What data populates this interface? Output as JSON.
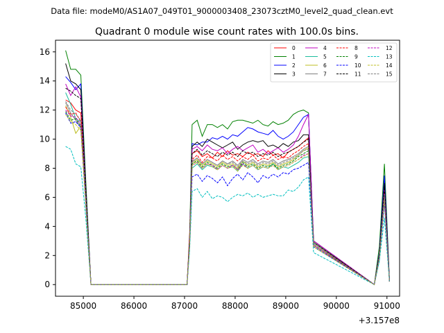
{
  "figure": {
    "suptitle": "Data file: modeM0/AS1A07_049T01_9000003408_23073cztM0_level2_quad_clean.evt"
  },
  "chart_data": {
    "type": "line",
    "title": "Quadrant 0 module wise count rates with 100.0s bins.",
    "xlabel": "",
    "ylabel": "",
    "x_offset_label": "+3.157e8",
    "xlim": [
      84450,
      91250
    ],
    "ylim": [
      -0.8,
      16.8
    ],
    "x_ticks": [
      85000,
      86000,
      87000,
      88000,
      89000,
      90000,
      91000
    ],
    "x_tick_labels": [
      "85000",
      "86000",
      "87000",
      "88000",
      "89000",
      "90000",
      "91000"
    ],
    "y_ticks": [
      0,
      2,
      4,
      6,
      8,
      10,
      12,
      14,
      16
    ],
    "y_tick_labels": [
      "0",
      "2",
      "4",
      "6",
      "8",
      "10",
      "12",
      "14",
      "16"
    ],
    "grid": false,
    "legend": {
      "placement": "top-right",
      "columns": 4
    },
    "segments": [
      {
        "start": 84650,
        "end": 85150
      },
      {
        "start": 85150,
        "end": 87050
      },
      {
        "start": 87050,
        "end": 89550
      },
      {
        "start": 89550,
        "end": 90750
      },
      {
        "start": 90750,
        "end": 90950
      }
    ],
    "series": [
      {
        "name": "0",
        "color": "#ff0000",
        "dash": "solid",
        "values": [
          12.7,
          12.5,
          12.0,
          11.8,
          6.0,
          0.0,
          3.5,
          9.0,
          9.2,
          8.8,
          9.0,
          8.7,
          9.1,
          8.8,
          9.2,
          8.9,
          9.0,
          8.8,
          9.1,
          8.9,
          9.0,
          8.8,
          9.2,
          8.9,
          9.0,
          8.7,
          9.1,
          9.3,
          9.5,
          9.8,
          10.1,
          3.0,
          0.0,
          2.0,
          6.5,
          0.2
        ]
      },
      {
        "name": "1",
        "color": "#008000",
        "dash": "solid",
        "values": [
          16.1,
          14.8,
          14.8,
          14.4,
          7.0,
          0.0,
          3.2,
          11.0,
          11.3,
          10.2,
          11.0,
          11.0,
          10.8,
          11.0,
          10.7,
          11.2,
          11.3,
          11.3,
          11.2,
          11.1,
          11.3,
          11.0,
          10.9,
          11.2,
          11.0,
          11.1,
          11.3,
          11.7,
          11.9,
          12.0,
          11.8,
          2.9,
          0.0,
          2.6,
          8.3,
          0.3
        ]
      },
      {
        "name": "2",
        "color": "#0000ff",
        "dash": "solid",
        "values": [
          14.3,
          13.9,
          13.4,
          13.8,
          6.5,
          0.0,
          3.0,
          9.7,
          9.6,
          9.8,
          9.8,
          10.1,
          10.0,
          10.2,
          10.0,
          10.3,
          10.2,
          10.5,
          10.8,
          10.7,
          10.5,
          10.4,
          10.3,
          10.6,
          10.2,
          10.0,
          10.2,
          10.5,
          11.0,
          11.5,
          11.7,
          3.0,
          0.0,
          2.2,
          7.5,
          0.3
        ]
      },
      {
        "name": "3",
        "color": "#000000",
        "dash": "solid",
        "values": [
          15.2,
          14.0,
          13.8,
          13.4,
          6.5,
          0.0,
          3.1,
          9.5,
          9.8,
          9.5,
          10.0,
          9.8,
          9.6,
          9.4,
          9.6,
          9.8,
          9.3,
          9.6,
          9.8,
          9.9,
          9.8,
          9.9,
          9.5,
          9.6,
          9.4,
          9.7,
          9.5,
          9.8,
          9.9,
          10.3,
          10.3,
          3.0,
          0.0,
          2.1,
          7.0,
          0.3
        ]
      },
      {
        "name": "4",
        "color": "#bf00bf",
        "dash": "solid",
        "values": [
          13.8,
          13.0,
          13.6,
          12.9,
          6.3,
          0.0,
          3.0,
          9.3,
          9.5,
          9.2,
          9.6,
          9.3,
          9.2,
          9.4,
          9.0,
          9.3,
          9.5,
          9.2,
          9.4,
          9.6,
          9.1,
          9.3,
          9.0,
          9.2,
          9.4,
          9.1,
          9.3,
          9.6,
          10.2,
          11.0,
          11.7,
          3.0,
          0.0,
          2.0,
          6.6,
          0.2
        ]
      },
      {
        "name": "5",
        "color": "#1abc9c",
        "dash": "solid",
        "values": [
          13.2,
          12.4,
          11.4,
          11.2,
          5.8,
          0.0,
          2.8,
          8.0,
          8.3,
          7.9,
          8.2,
          8.1,
          7.9,
          8.2,
          8.0,
          8.1,
          7.8,
          8.3,
          8.0,
          8.2,
          7.9,
          8.1,
          8.0,
          8.3,
          7.9,
          8.1,
          8.0,
          8.2,
          8.4,
          8.7,
          8.8,
          2.6,
          0.0,
          1.8,
          5.8,
          0.2
        ]
      },
      {
        "name": "6",
        "color": "#bcbd22",
        "dash": "solid",
        "values": [
          12.3,
          11.5,
          10.4,
          10.9,
          5.5,
          0.0,
          2.7,
          8.3,
          8.6,
          8.2,
          8.5,
          8.3,
          8.1,
          8.4,
          8.2,
          8.3,
          8.0,
          8.5,
          8.2,
          8.4,
          8.1,
          8.3,
          8.2,
          8.4,
          8.1,
          8.3,
          8.4,
          8.6,
          8.9,
          9.2,
          9.4,
          2.7,
          0.0,
          1.9,
          6.0,
          0.2
        ]
      },
      {
        "name": "7",
        "color": "#7f7f7f",
        "dash": "solid",
        "values": [
          12.5,
          11.8,
          11.3,
          10.8,
          5.6,
          0.0,
          2.8,
          8.4,
          8.7,
          8.3,
          8.6,
          8.4,
          8.2,
          8.5,
          8.3,
          8.5,
          8.2,
          8.6,
          8.4,
          8.6,
          8.3,
          8.5,
          8.4,
          8.6,
          8.3,
          8.5,
          8.6,
          8.8,
          9.0,
          9.3,
          9.5,
          2.8,
          0.0,
          1.9,
          6.1,
          0.2
        ]
      },
      {
        "name": "8",
        "color": "#ff0000",
        "dash": "dashed",
        "values": [
          12.2,
          11.7,
          11.8,
          11.2,
          5.7,
          0.0,
          2.9,
          8.6,
          8.9,
          8.4,
          8.8,
          8.7,
          8.5,
          8.9,
          8.6,
          8.8,
          8.5,
          8.8,
          8.6,
          8.9,
          8.5,
          8.7,
          8.6,
          8.9,
          8.6,
          8.8,
          8.7,
          9.0,
          9.2,
          9.5,
          9.7,
          2.8,
          0.0,
          2.0,
          6.3,
          0.2
        ]
      },
      {
        "name": "9",
        "color": "#008000",
        "dash": "dashed",
        "values": [
          11.9,
          11.3,
          11.4,
          10.9,
          5.5,
          0.0,
          2.8,
          8.3,
          8.5,
          8.1,
          8.4,
          8.2,
          8.0,
          8.3,
          8.1,
          8.2,
          7.9,
          8.4,
          8.1,
          8.3,
          8.0,
          8.2,
          8.1,
          8.3,
          8.0,
          8.2,
          8.3,
          8.5,
          8.8,
          9.0,
          9.2,
          2.7,
          0.0,
          1.9,
          5.9,
          0.2
        ]
      },
      {
        "name": "10",
        "color": "#0000ff",
        "dash": "dashed",
        "values": [
          11.8,
          11.1,
          11.2,
          10.8,
          5.4,
          0.0,
          2.6,
          7.4,
          7.6,
          7.1,
          7.5,
          7.3,
          7.0,
          7.4,
          6.8,
          7.3,
          7.6,
          7.2,
          7.7,
          7.4,
          7.0,
          7.5,
          7.3,
          7.6,
          7.4,
          7.7,
          7.6,
          7.9,
          8.0,
          8.2,
          8.4,
          2.6,
          0.0,
          1.7,
          5.6,
          0.2
        ]
      },
      {
        "name": "11",
        "color": "#000000",
        "dash": "dashed",
        "values": [
          13.5,
          13.3,
          13.0,
          12.8,
          6.3,
          0.0,
          3.0,
          9.0,
          9.3,
          8.9,
          9.2,
          9.0,
          8.8,
          9.1,
          8.9,
          9.1,
          8.8,
          9.2,
          9.0,
          9.1,
          8.8,
          9.0,
          8.9,
          9.1,
          8.8,
          9.0,
          9.1,
          9.3,
          9.5,
          9.8,
          10.0,
          2.9,
          0.0,
          2.0,
          6.8,
          0.2
        ]
      },
      {
        "name": "12",
        "color": "#bf00bf",
        "dash": "dashed",
        "values": [
          12.0,
          11.6,
          11.5,
          11.0,
          5.6,
          0.0,
          2.8,
          8.2,
          8.4,
          8.0,
          8.3,
          8.2,
          7.9,
          8.2,
          8.0,
          8.2,
          7.9,
          8.3,
          8.0,
          8.2,
          7.9,
          8.1,
          8.0,
          8.2,
          7.9,
          8.1,
          8.2,
          8.4,
          8.6,
          8.9,
          9.0,
          2.7,
          0.0,
          1.9,
          6.0,
          0.2
        ]
      },
      {
        "name": "13",
        "color": "#00bfbf",
        "dash": "dashed",
        "values": [
          9.5,
          9.3,
          8.3,
          8.1,
          4.5,
          0.0,
          2.3,
          6.4,
          6.6,
          6.0,
          6.4,
          5.9,
          6.1,
          6.0,
          5.7,
          6.0,
          6.2,
          6.1,
          6.3,
          6.0,
          6.2,
          6.0,
          6.1,
          6.2,
          6.1,
          6.1,
          6.5,
          6.4,
          6.7,
          7.2,
          7.4,
          2.2,
          0.0,
          1.6,
          4.6,
          0.2
        ]
      },
      {
        "name": "14",
        "color": "#bcbd22",
        "dash": "dashed",
        "values": [
          11.7,
          11.2,
          11.0,
          10.6,
          5.4,
          0.0,
          2.7,
          8.2,
          8.4,
          8.0,
          8.3,
          8.1,
          7.9,
          8.2,
          8.0,
          8.1,
          7.8,
          8.2,
          8.0,
          8.2,
          7.9,
          8.1,
          8.0,
          8.2,
          7.9,
          8.1,
          8.2,
          8.4,
          8.6,
          8.8,
          9.0,
          2.6,
          0.0,
          1.8,
          5.8,
          0.2
        ]
      },
      {
        "name": "15",
        "color": "#7f7f7f",
        "dash": "dashed",
        "values": [
          12.6,
          12.0,
          11.7,
          11.3,
          5.7,
          0.0,
          2.8,
          8.5,
          8.7,
          8.3,
          8.6,
          8.4,
          8.2,
          8.5,
          8.3,
          8.4,
          8.1,
          8.5,
          8.3,
          8.5,
          8.2,
          8.4,
          8.3,
          8.5,
          8.2,
          8.4,
          8.5,
          8.7,
          8.9,
          9.2,
          9.3,
          2.8,
          0.0,
          1.9,
          6.2,
          0.2
        ]
      }
    ]
  }
}
